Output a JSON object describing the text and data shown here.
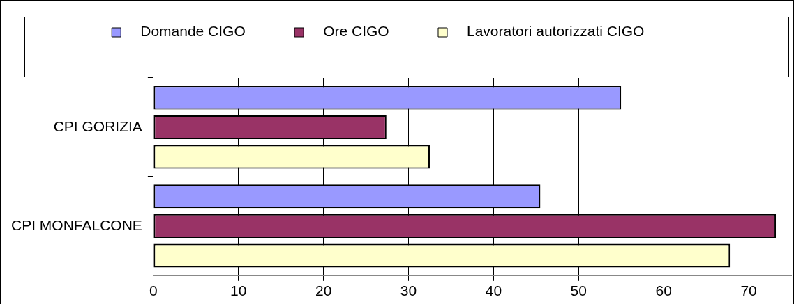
{
  "chart_data": {
    "type": "bar",
    "orientation": "horizontal",
    "categories": [
      "CPI GORIZIA",
      "CPI MONFALCONE"
    ],
    "series": [
      {
        "name": "Domande CIGO",
        "color": "#9999ff",
        "values": [
          55.0,
          45.5
        ]
      },
      {
        "name": "Ore CIGO",
        "color": "#993366",
        "values": [
          27.4,
          73.2
        ]
      },
      {
        "name": "Lavoratori autorizzati CIGO",
        "color": "#ffffcc",
        "values": [
          32.5,
          67.8
        ]
      }
    ],
    "xlim": [
      0,
      75
    ],
    "xticks": [
      0,
      10,
      20,
      30,
      40,
      50,
      60,
      70
    ],
    "grid": "x",
    "legend": "top"
  }
}
